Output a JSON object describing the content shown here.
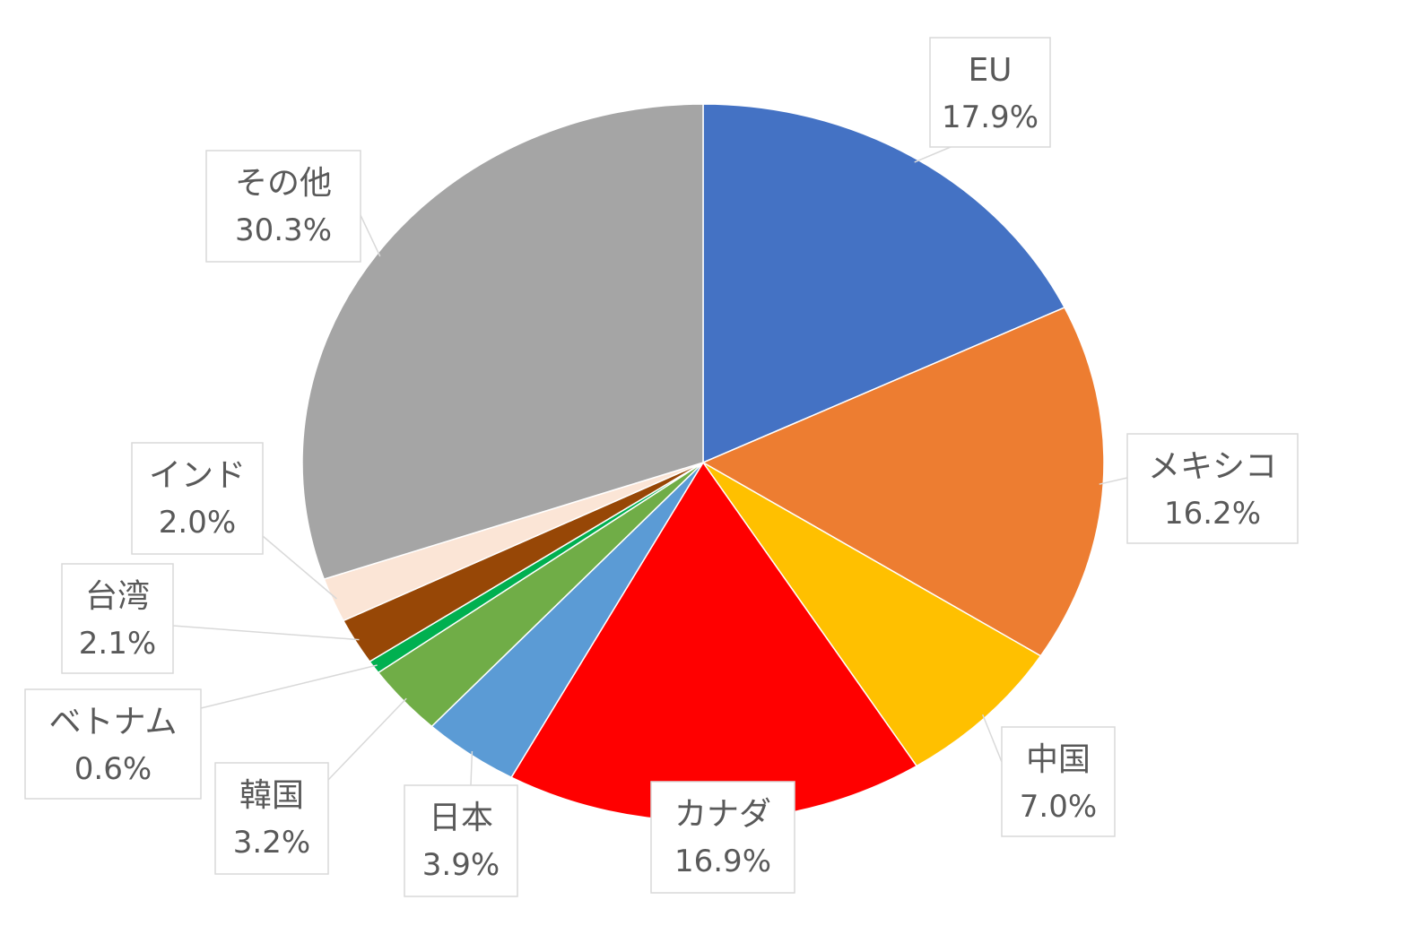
{
  "chart_data": {
    "type": "pie",
    "title": "",
    "start_angle_deg": 0,
    "direction": "clockwise",
    "slices": [
      {
        "label": "EU",
        "value_label": "17.9%",
        "value": 17.9,
        "color": "#4472C4"
      },
      {
        "label": "メキシコ",
        "value_label": "16.2%",
        "value": 16.2,
        "color": "#ED7D31"
      },
      {
        "label": "中国",
        "value_label": "7.0%",
        "value": 7.0,
        "color": "#FFC000"
      },
      {
        "label": "カナダ",
        "value_label": "16.9%",
        "value": 16.9,
        "color": "#FF0000"
      },
      {
        "label": "日本",
        "value_label": "3.9%",
        "value": 3.9,
        "color": "#5B9BD5"
      },
      {
        "label": "韓国",
        "value_label": "3.2%",
        "value": 3.2,
        "color": "#70AD47"
      },
      {
        "label": "ベトナム",
        "value_label": "0.6%",
        "value": 0.6,
        "color": "#00B050"
      },
      {
        "label": "台湾",
        "value_label": "2.1%",
        "value": 2.1,
        "color": "#974706"
      },
      {
        "label": "インド",
        "value_label": "2.0%",
        "value": 2.0,
        "color": "#FBE5D6"
      },
      {
        "label": "その他",
        "value_label": "30.3%",
        "value": 30.3,
        "color": "#A5A5A5"
      }
    ]
  }
}
